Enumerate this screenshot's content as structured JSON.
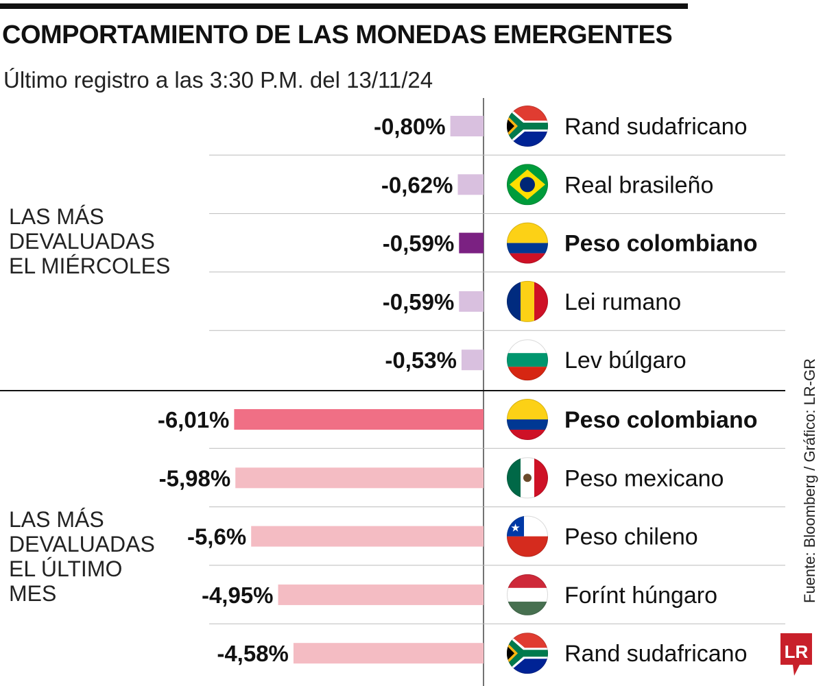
{
  "header": {
    "title": "COMPORTAMIENTO DE LAS MONEDAS EMERGENTES",
    "subtitle": "Último registro a las 3:30 P.M. del 13/11/24"
  },
  "groups": [
    "LAS MÁS DEVALUADAS EL MIÉRCOLES",
    "LAS MÁS DEVALUADAS EL ÚLTIMO MES"
  ],
  "source": "Fuente: Bloomberg / Gráfico: LR-GR",
  "logo": "LR",
  "colors": {
    "day_bar": "#d9c0df",
    "day_highlight": "#7b2182",
    "month_bar": "#f4bcc3",
    "month_highlight": "#f06f85"
  },
  "chart_data": [
    {
      "type": "bar",
      "orientation": "horizontal",
      "title": "LAS MÁS DEVALUADAS EL MIÉRCOLES",
      "unit": "%",
      "categories": [
        "Rand sudafricano",
        "Real brasileño",
        "Peso colombiano",
        "Lei rumano",
        "Lev búlgaro"
      ],
      "flags": [
        "za",
        "br",
        "co",
        "ro",
        "bg"
      ],
      "values": [
        -0.8,
        -0.62,
        -0.59,
        -0.59,
        -0.53
      ],
      "labels": [
        "-0,80%",
        "-0,62%",
        "-0,59%",
        "-0,59%",
        "-0,53%"
      ],
      "highlight": "Peso colombiano"
    },
    {
      "type": "bar",
      "orientation": "horizontal",
      "title": "LAS MÁS DEVALUADAS EL ÚLTIMO MES",
      "unit": "%",
      "categories": [
        "Peso colombiano",
        "Peso mexicano",
        "Peso chileno",
        "Forínt húngaro",
        "Rand sudafricano"
      ],
      "flags": [
        "co",
        "mx",
        "cl",
        "hu",
        "za"
      ],
      "values": [
        -6.01,
        -5.98,
        -5.6,
        -4.95,
        -4.58
      ],
      "labels": [
        "-6,01%",
        "-5,98%",
        "-5,6%",
        "-4,95%",
        "-4,58%"
      ],
      "highlight": "Peso colombiano"
    }
  ]
}
